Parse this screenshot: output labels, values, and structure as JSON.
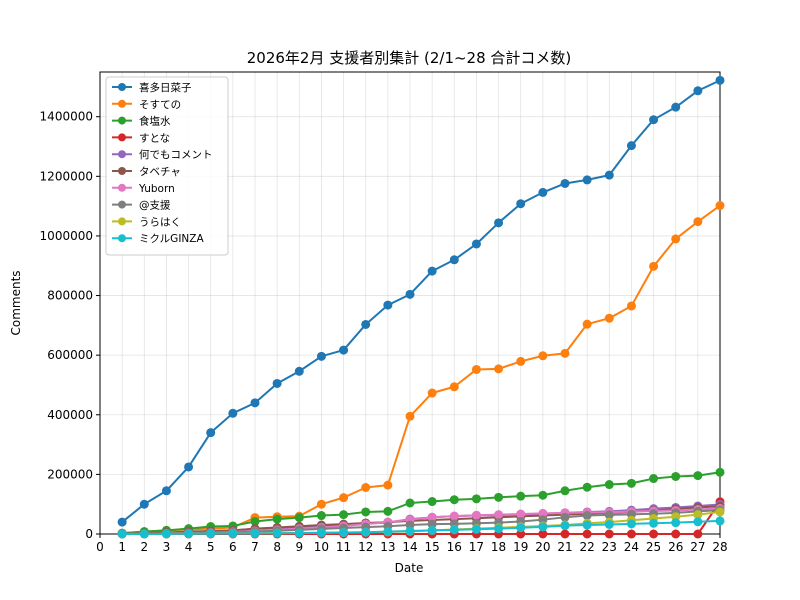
{
  "chart_data": {
    "type": "line",
    "title": "2026年2月 支援者別集計 (2/1~28 合計コメ数)",
    "xlabel": "Date",
    "ylabel": "Comments",
    "xlim": [
      0,
      28
    ],
    "ylim": [
      0,
      1550000
    ],
    "x_ticks": [
      "0",
      "1",
      "2",
      "3",
      "4",
      "5",
      "6",
      "7",
      "8",
      "9",
      "10",
      "11",
      "12",
      "13",
      "14",
      "15",
      "16",
      "17",
      "18",
      "19",
      "20",
      "21",
      "22",
      "23",
      "24",
      "25",
      "26",
      "27",
      "28"
    ],
    "y_ticks": [
      "0",
      "200000",
      "400000",
      "600000",
      "800000",
      "1000000",
      "1200000",
      "1400000"
    ],
    "grid": true,
    "legend_position": "upper-left",
    "x": [
      1,
      2,
      3,
      4,
      5,
      6,
      7,
      8,
      9,
      10,
      11,
      12,
      13,
      14,
      15,
      16,
      17,
      18,
      19,
      20,
      21,
      22,
      23,
      24,
      25,
      26,
      27,
      28
    ],
    "series": [
      {
        "name": "喜多日菜子",
        "color": "#1f77b4",
        "values": [
          40000,
          100000,
          145000,
          225000,
          340000,
          405000,
          440000,
          505000,
          546000,
          596000,
          617000,
          703000,
          768000,
          804000,
          882000,
          920000,
          973000,
          1044000,
          1108000,
          1146000,
          1176000,
          1188000,
          1204000,
          1303000,
          1390000,
          1432000,
          1487000,
          1522000
        ]
      },
      {
        "name": "そすての",
        "color": "#ff7f0e",
        "values": [
          2000,
          8000,
          12000,
          15000,
          18000,
          22000,
          55000,
          58000,
          60000,
          100000,
          122000,
          156000,
          164000,
          395000,
          473000,
          494000,
          552000,
          554000,
          579000,
          598000,
          606000,
          704000,
          724000,
          765000,
          898000,
          990000,
          1048000,
          1102000
        ]
      },
      {
        "name": "食塩水",
        "color": "#2ca02c",
        "values": [
          3000,
          8000,
          12000,
          18000,
          25000,
          27000,
          42000,
          50000,
          55000,
          62000,
          65000,
          74000,
          76000,
          104000,
          109000,
          115000,
          118000,
          123000,
          127000,
          130000,
          145000,
          157000,
          166000,
          170000,
          186000,
          193000,
          196000,
          207000
        ]
      },
      {
        "name": "すとな",
        "color": "#d62728",
        "values": [
          0,
          0,
          0,
          0,
          0,
          0,
          0,
          0,
          0,
          0,
          0,
          0,
          0,
          0,
          0,
          0,
          0,
          0,
          0,
          0,
          0,
          0,
          0,
          0,
          0,
          0,
          0,
          108000
        ]
      },
      {
        "name": "何でもコメント",
        "color": "#9467bd",
        "values": [
          1000,
          2000,
          4000,
          6000,
          9000,
          12000,
          17000,
          20000,
          24000,
          28000,
          31000,
          35000,
          38000,
          50000,
          56000,
          60000,
          62000,
          63000,
          66000,
          68000,
          71000,
          74000,
          76000,
          80000,
          85000,
          89000,
          94000,
          99000
        ]
      },
      {
        "name": "タベチャ",
        "color": "#8c564b",
        "values": [
          1000,
          3000,
          5000,
          8000,
          10000,
          12000,
          18000,
          22000,
          26000,
          30000,
          33000,
          37000,
          40000,
          44000,
          47000,
          50000,
          53000,
          56000,
          59000,
          62000,
          65000,
          68000,
          71000,
          74000,
          79000,
          84000,
          89000,
          93000
        ]
      },
      {
        "name": "Yuborn",
        "color": "#e377c2",
        "values": [
          500,
          1000,
          2000,
          3000,
          5000,
          7000,
          10000,
          14000,
          18000,
          22000,
          27000,
          33000,
          40000,
          48000,
          56000,
          60000,
          63000,
          65000,
          67000,
          69000,
          71000,
          72000,
          73000,
          75000,
          77000,
          79000,
          82000,
          86000
        ]
      },
      {
        "name": "@支援",
        "color": "#7f7f7f",
        "values": [
          300,
          800,
          1500,
          2500,
          4000,
          5500,
          8000,
          11000,
          14000,
          17000,
          20000,
          23000,
          26000,
          30000,
          33000,
          34000,
          36000,
          38000,
          42000,
          48000,
          56000,
          62000,
          64000,
          66000,
          68000,
          71000,
          76000,
          80000
        ]
      },
      {
        "name": "うらはく",
        "color": "#bcbd22",
        "values": [
          0,
          300,
          600,
          1000,
          1500,
          2000,
          2500,
          3000,
          3500,
          4000,
          5000,
          6000,
          7000,
          9000,
          12000,
          15000,
          18000,
          21000,
          24000,
          27000,
          30000,
          36000,
          40000,
          46000,
          52000,
          58000,
          65000,
          74000
        ]
      },
      {
        "name": "ミクルGINZA",
        "color": "#17becf",
        "values": [
          0,
          200,
          500,
          800,
          1200,
          1600,
          2000,
          2500,
          3000,
          4000,
          5000,
          6000,
          8000,
          10000,
          12000,
          14000,
          16000,
          18000,
          21000,
          24000,
          28000,
          30000,
          32000,
          34000,
          36000,
          38000,
          41000,
          44000
        ]
      }
    ]
  }
}
